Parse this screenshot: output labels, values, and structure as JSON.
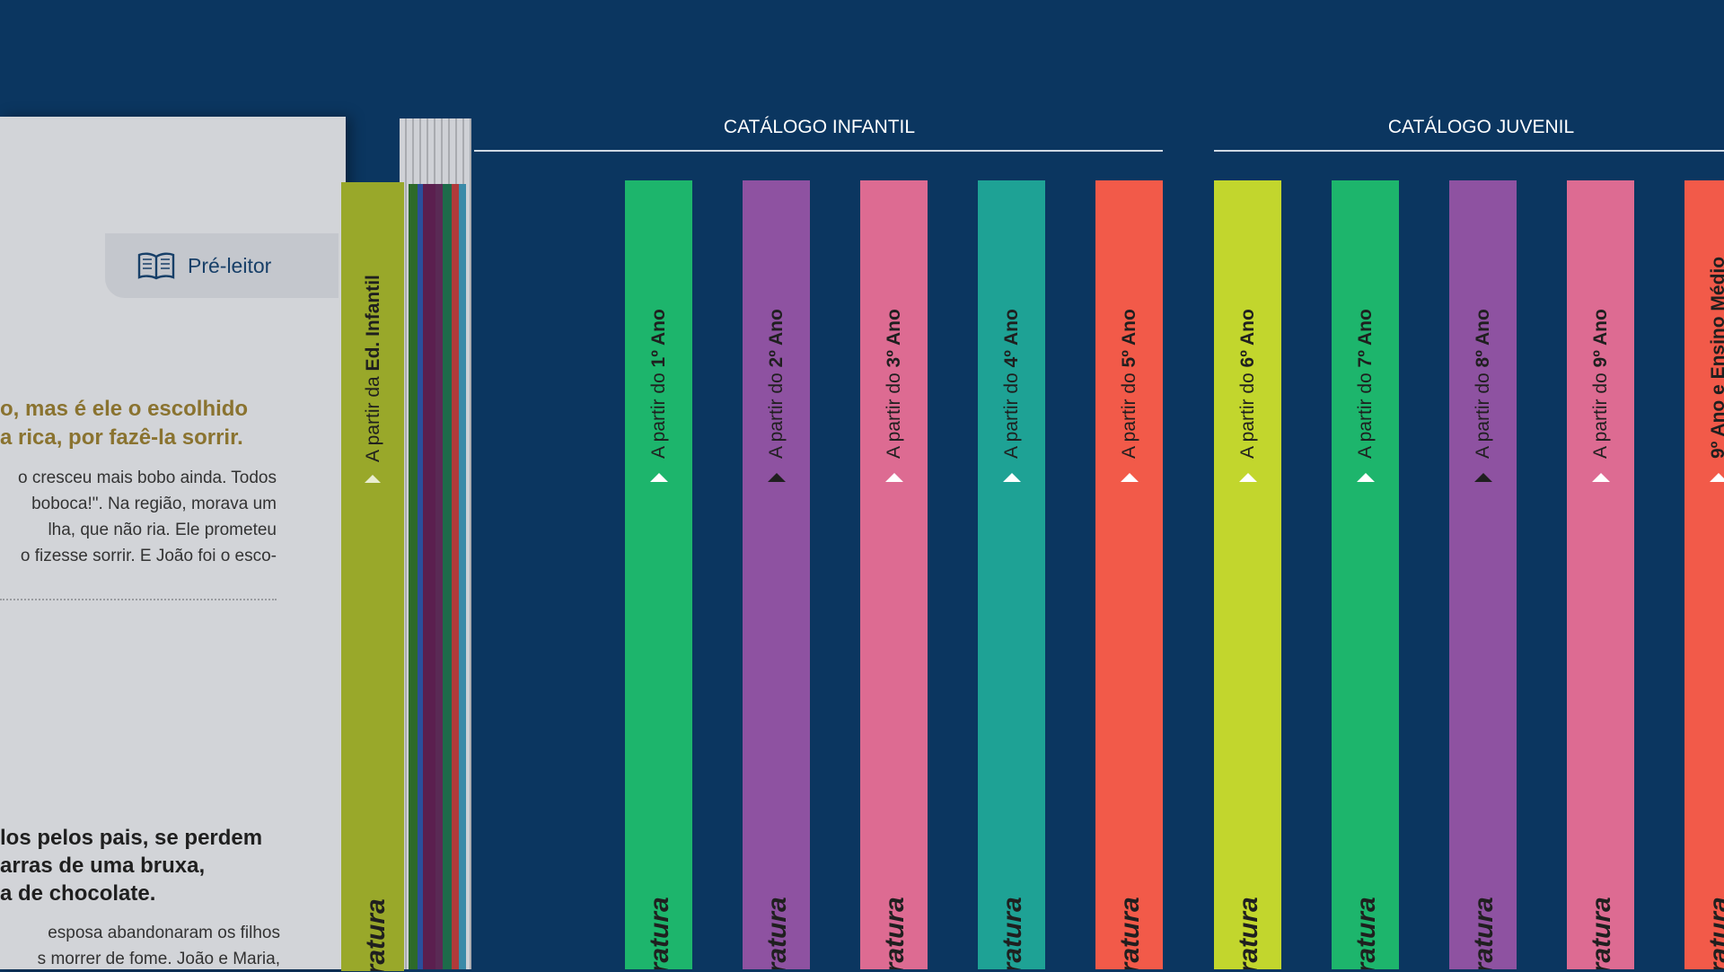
{
  "colors": {
    "background": "#0b3660",
    "green": "#1db56c",
    "purple": "#8e52a1",
    "pink": "#dd6b92",
    "teal": "#1ea295",
    "coral": "#f25a49",
    "lime": "#c2d62d",
    "olive": "#99a82a"
  },
  "book": {
    "tab_label": "Pré-leitor",
    "tab_icon": "open-book-icon",
    "spine_prefix": "A partir da ",
    "spine_bold": "Ed. Infantil",
    "spine_brand": "eratura",
    "headline_lines": [
      "o, mas é ele o escolhido",
      "a rica, por fazê-la sorrir."
    ],
    "body_lines": [
      "o cresceu mais bobo ainda. Todos",
      "boboca!\". Na região, morava um",
      "lha, que não ria. Ele prometeu",
      "o fizesse sorrir. E João foi o esco-"
    ],
    "headline2_lines": [
      "los pelos pais, se perdem",
      "arras de uma bruxa,",
      "a de chocolate."
    ],
    "body2_lines": [
      "esposa abandonaram os filhos",
      "s morrer de fome. João e Maria,"
    ]
  },
  "catalogs": [
    {
      "title": "CATÁLOGO INFANTIL",
      "books": [
        {
          "prefix": "A partir do ",
          "grade": "1º Ano",
          "brand": "eratura",
          "color": "#1db56c",
          "chevron": "#ffffff"
        },
        {
          "prefix": "A partir do ",
          "grade": "2º Ano",
          "brand": "eratura",
          "color": "#8e52a1",
          "chevron": "#1f1f1f"
        },
        {
          "prefix": "A partir do ",
          "grade": "3º Ano",
          "brand": "eratura",
          "color": "#dd6b92",
          "chevron": "#ffffff"
        },
        {
          "prefix": "A partir do ",
          "grade": "4º Ano",
          "brand": "eratura",
          "color": "#1ea295",
          "chevron": "#ffffff"
        },
        {
          "prefix": "A partir do ",
          "grade": "5º Ano",
          "brand": "eratura",
          "color": "#f25a49",
          "chevron": "#ffffff"
        }
      ]
    },
    {
      "title": "CATÁLOGO JUVENIL",
      "books": [
        {
          "prefix": "A partir do ",
          "grade": "6º Ano",
          "brand": "eratura",
          "color": "#c2d62d",
          "chevron": "#ffffff"
        },
        {
          "prefix": "A partir do ",
          "grade": "7º Ano",
          "brand": "eratura",
          "color": "#1db56c",
          "chevron": "#ffffff"
        },
        {
          "prefix": "A partir do ",
          "grade": "8º Ano",
          "brand": "eratura",
          "color": "#8e52a1",
          "chevron": "#1f1f1f"
        },
        {
          "prefix": "A partir do ",
          "grade": "9º Ano",
          "brand": "eratura",
          "color": "#dd6b92",
          "chevron": "#ffffff"
        },
        {
          "prefix": "",
          "grade": "9º Ano e Ensino Médio",
          "brand": "eratura",
          "color": "#f25a49",
          "chevron": "#ffffff"
        }
      ]
    }
  ]
}
